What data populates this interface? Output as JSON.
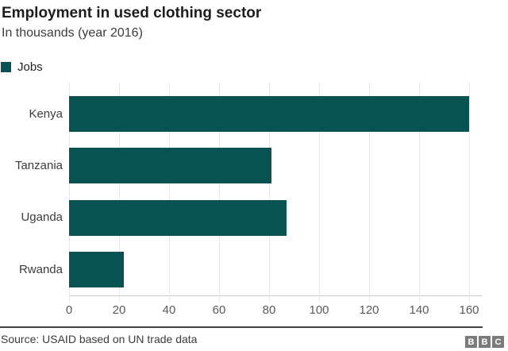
{
  "header": {
    "title": "Employment in used clothing sector",
    "subtitle": "In thousands (year 2016)"
  },
  "legend": {
    "label": "Jobs",
    "color": "#085351"
  },
  "chart_data": {
    "type": "bar",
    "orientation": "horizontal",
    "title": "Employment in used clothing sector",
    "subtitle": "In thousands (year 2016)",
    "series_name": "Jobs",
    "categories": [
      "Kenya",
      "Tanzania",
      "Uganda",
      "Rwanda"
    ],
    "values": [
      160,
      81,
      87,
      22
    ],
    "xlim": [
      0,
      160
    ],
    "xticks": [
      0,
      20,
      40,
      60,
      80,
      100,
      120,
      140,
      160
    ],
    "bar_color": "#085351",
    "gridline_color": "#e8e8e8",
    "grid": true,
    "legend_position": "top-left"
  },
  "footer": {
    "source": "Source: USAID based on UN trade data",
    "logo_letters": [
      "B",
      "B",
      "C"
    ]
  }
}
